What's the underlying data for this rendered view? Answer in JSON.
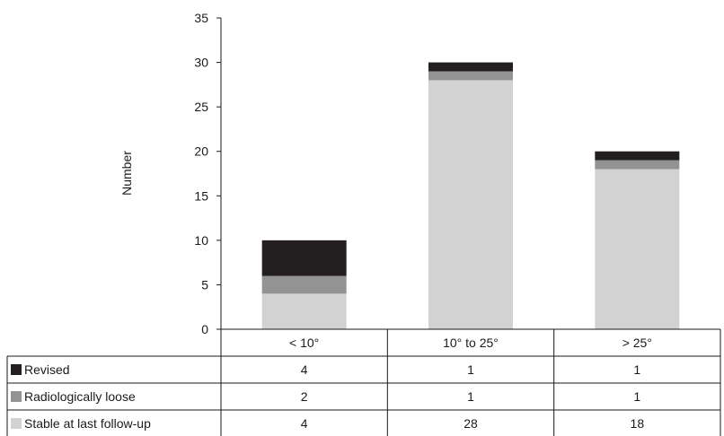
{
  "chart_data": {
    "type": "bar",
    "stacked": true,
    "title": "",
    "ylabel": "Number",
    "xlabel": "",
    "ylim": [
      0,
      35
    ],
    "yticks": [
      0,
      5,
      10,
      15,
      20,
      25,
      30,
      35
    ],
    "grid": false,
    "legend": "data-table-below",
    "categories": [
      "< 10°",
      "10° to 25°",
      "> 25°"
    ],
    "series": [
      {
        "name": "Revised",
        "values": [
          4,
          1,
          1
        ],
        "color": "#231f20"
      },
      {
        "name": "Radiologically loose",
        "values": [
          2,
          1,
          1
        ],
        "color": "#939393"
      },
      {
        "name": "Stable at last follow-up",
        "values": [
          4,
          28,
          18
        ],
        "color": "#d2d2d2"
      }
    ]
  }
}
